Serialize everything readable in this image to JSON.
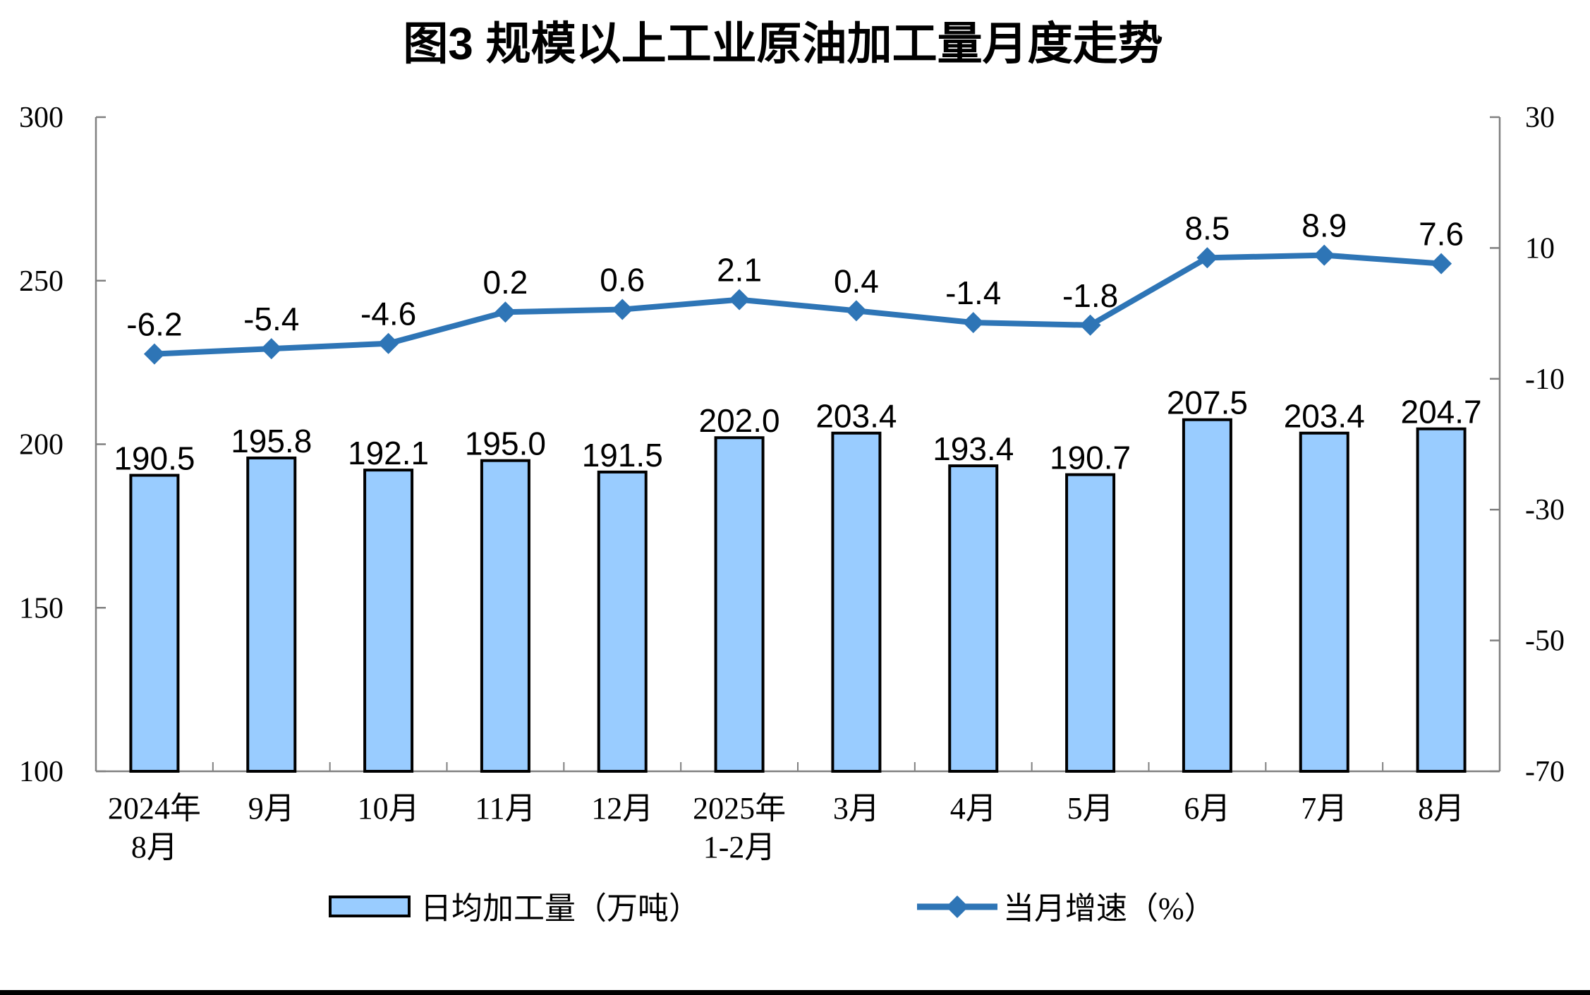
{
  "chart_data": {
    "type": "combo-bar-line",
    "title": "图3 规模以上工业原油加工量月度走势",
    "categories": [
      "2024年\n8月",
      "9月",
      "10月",
      "11月",
      "12月",
      "2025年\n1-2月",
      "3月",
      "4月",
      "5月",
      "6月",
      "7月",
      "8月"
    ],
    "bar_series": {
      "name": "日均加工量（万吨）",
      "values": [
        190.5,
        195.8,
        192.1,
        195.0,
        191.5,
        202.0,
        203.4,
        193.4,
        190.7,
        207.5,
        203.4,
        204.7
      ]
    },
    "line_series": {
      "name": "当月增速（%）",
      "values": [
        -6.2,
        -5.4,
        -4.6,
        0.2,
        0.6,
        2.1,
        0.4,
        -1.4,
        -1.8,
        8.5,
        8.9,
        7.6
      ]
    },
    "left_axis": {
      "min": 100,
      "max": 300,
      "ticks": [
        300,
        250,
        200,
        150,
        100
      ]
    },
    "right_axis": {
      "min": -70,
      "max": 30,
      "ticks": [
        30,
        10,
        -10,
        -30,
        -50,
        -70
      ]
    },
    "legend_position": "bottom",
    "grid": false,
    "colors": {
      "bar_fill": "#99CCFF",
      "bar_border": "#000000",
      "line": "#2E75B6",
      "axis": "#808080"
    }
  }
}
